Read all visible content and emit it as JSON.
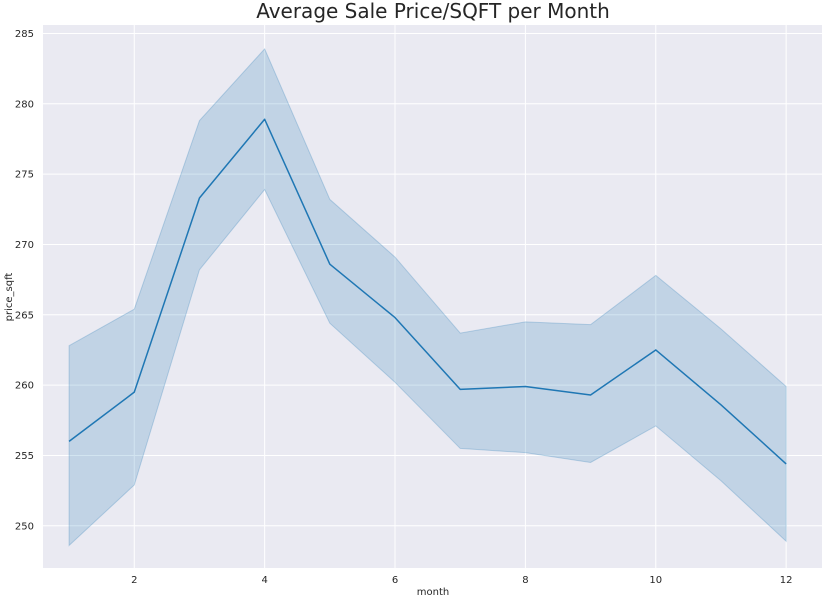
{
  "chart_data": {
    "type": "line",
    "title": "Average Sale Price/SQFT per Month",
    "xlabel": "month",
    "ylabel": "price_sqft",
    "xlim": [
      0.6,
      12.55
    ],
    "ylim": [
      247,
      285.6
    ],
    "xticks": [
      2,
      4,
      6,
      8,
      10,
      12
    ],
    "yticks": [
      250,
      255,
      260,
      265,
      270,
      275,
      280,
      285
    ],
    "grid": true,
    "colors": {
      "background": "#eaeaf2",
      "grid": "#ffffff",
      "line": "#1f77b4",
      "band": "#1f77b4"
    },
    "series": [
      {
        "x": [
          1,
          2,
          3,
          4,
          5,
          6,
          7,
          8,
          9,
          10,
          11,
          12
        ],
        "values": [
          256.0,
          259.5,
          273.3,
          278.9,
          268.6,
          264.8,
          259.7,
          259.9,
          259.3,
          262.5,
          258.6,
          254.4
        ],
        "ci_lower": [
          248.6,
          252.9,
          268.2,
          273.9,
          264.4,
          260.2,
          255.5,
          255.2,
          254.5,
          257.1,
          253.2,
          248.9
        ],
        "ci_upper": [
          262.8,
          265.4,
          278.8,
          283.9,
          273.2,
          269.1,
          263.7,
          264.5,
          264.3,
          267.8,
          264.0,
          259.9
        ]
      }
    ]
  }
}
